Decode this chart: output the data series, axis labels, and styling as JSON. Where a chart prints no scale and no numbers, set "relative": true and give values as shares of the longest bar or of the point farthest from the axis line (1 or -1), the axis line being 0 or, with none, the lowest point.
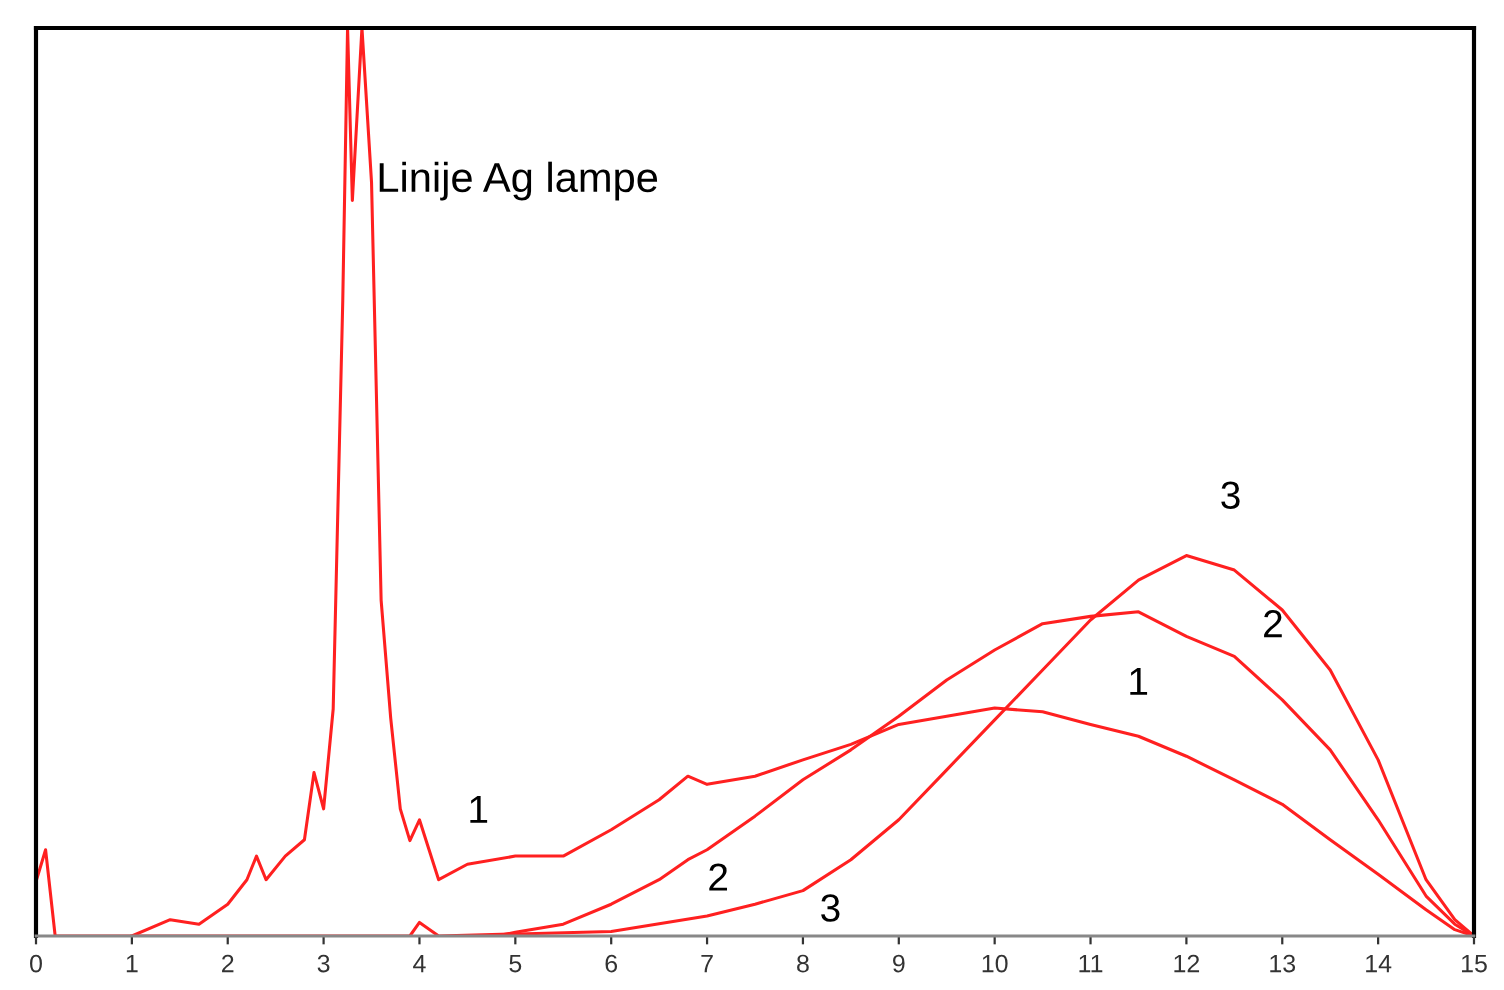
{
  "chart_data": {
    "type": "line",
    "relative": true,
    "xlim": [
      0,
      15
    ],
    "xticks": [
      0,
      1,
      2,
      3,
      4,
      5,
      6,
      7,
      8,
      9,
      10,
      11,
      12,
      13,
      14,
      15
    ],
    "tick_labels": "x",
    "grid": false,
    "legend": false,
    "marker": "none",
    "line_style": "solid",
    "series": [
      {
        "name": "1",
        "color": "#ff2020",
        "x": [
          0.0,
          0.1,
          0.2,
          0.8,
          1.0,
          1.4,
          1.7,
          2.0,
          2.2,
          2.3,
          2.4,
          2.6,
          2.8,
          2.9,
          3.0,
          3.1,
          3.2,
          3.25,
          3.3,
          3.4,
          3.5,
          3.6,
          3.7,
          3.8,
          3.9,
          4.0,
          4.1,
          4.2,
          4.5,
          5.0,
          5.5,
          6.0,
          6.5,
          6.8,
          7.0,
          7.5,
          8.0,
          8.5,
          9.0,
          9.5,
          10.0,
          10.5,
          11.0,
          11.5,
          12.0,
          12.5,
          13.0,
          13.5,
          14.0,
          14.5,
          14.8,
          15.0
        ],
        "values": [
          0.06,
          0.095,
          0.0,
          0.0,
          0.0,
          0.018,
          0.013,
          0.035,
          0.062,
          0.088,
          0.062,
          0.088,
          0.106,
          0.18,
          0.14,
          0.25,
          0.7,
          1.0,
          0.81,
          1.0,
          0.83,
          0.37,
          0.24,
          0.14,
          0.105,
          0.128,
          0.095,
          0.062,
          0.079,
          0.088,
          0.088,
          0.117,
          0.15,
          0.176,
          0.167,
          0.176,
          0.194,
          0.211,
          0.233,
          0.242,
          0.251,
          0.247,
          0.233,
          0.22,
          0.198,
          0.172,
          0.145,
          0.106,
          0.068,
          0.029,
          0.007,
          0.0
        ]
      },
      {
        "name": "2",
        "color": "#ff2020",
        "x": [
          4.8,
          5.0,
          5.5,
          6.0,
          6.5,
          6.8,
          7.0,
          7.5,
          8.0,
          8.5,
          9.0,
          9.5,
          10.0,
          10.5,
          11.0,
          11.5,
          12.0,
          12.5,
          13.0,
          13.5,
          14.0,
          14.5,
          14.8,
          15.0
        ],
        "values": [
          0.0,
          0.004,
          0.013,
          0.035,
          0.062,
          0.084,
          0.095,
          0.132,
          0.172,
          0.205,
          0.242,
          0.282,
          0.315,
          0.344,
          0.352,
          0.357,
          0.33,
          0.308,
          0.26,
          0.205,
          0.128,
          0.044,
          0.013,
          0.0
        ]
      },
      {
        "name": "3",
        "color": "#ff2020",
        "x": [
          1.0,
          3.9,
          4.0,
          4.2,
          6.0,
          7.0,
          7.5,
          8.0,
          8.5,
          9.0,
          9.5,
          10.0,
          10.5,
          11.0,
          11.5,
          12.0,
          12.5,
          13.0,
          13.5,
          14.0,
          14.5,
          14.8,
          15.0
        ],
        "values": [
          0.0,
          0.0,
          0.015,
          0.0,
          0.005,
          0.022,
          0.035,
          0.05,
          0.084,
          0.128,
          0.183,
          0.238,
          0.293,
          0.348,
          0.392,
          0.419,
          0.403,
          0.359,
          0.293,
          0.194,
          0.062,
          0.018,
          0.0
        ]
      }
    ],
    "annotations": [
      {
        "text": "Linije Ag lampe",
        "x": 3.55,
        "y": 0.81
      }
    ]
  }
}
